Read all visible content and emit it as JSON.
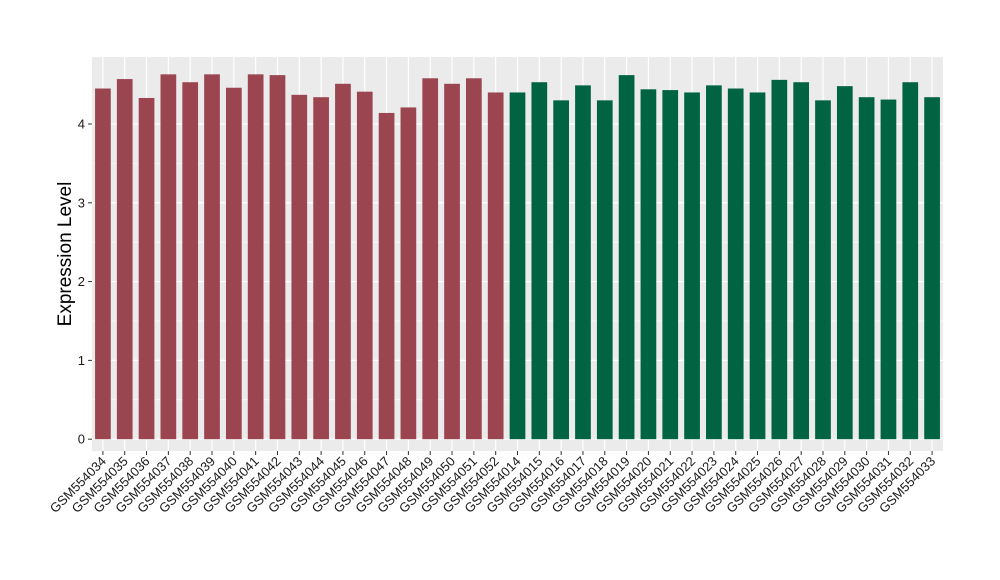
{
  "chart_data": {
    "type": "bar",
    "title": "",
    "xlabel": "",
    "ylabel": "Expression Level",
    "ylim": [
      -0.15,
      4.85
    ],
    "yticks": [
      0,
      1,
      2,
      3,
      4
    ],
    "grid": true,
    "legend": "none",
    "colors": {
      "group_a": "#9b4551",
      "group_b": "#006442",
      "panel": "#ebebeb",
      "gridline": "#ffffff"
    },
    "categories": [
      "GSM554034",
      "GSM554035",
      "GSM554036",
      "GSM554037",
      "GSM554038",
      "GSM554039",
      "GSM554040",
      "GSM554041",
      "GSM554042",
      "GSM554043",
      "GSM554044",
      "GSM554045",
      "GSM554046",
      "GSM554047",
      "GSM554048",
      "GSM554049",
      "GSM554050",
      "GSM554051",
      "GSM554052",
      "GSM554014",
      "GSM554015",
      "GSM554016",
      "GSM554017",
      "GSM554018",
      "GSM554019",
      "GSM554020",
      "GSM554021",
      "GSM554022",
      "GSM554023",
      "GSM554024",
      "GSM554025",
      "GSM554026",
      "GSM554027",
      "GSM554028",
      "GSM554029",
      "GSM554030",
      "GSM554031",
      "GSM554032",
      "GSM554033"
    ],
    "values": [
      4.45,
      4.57,
      4.33,
      4.63,
      4.53,
      4.63,
      4.46,
      4.63,
      4.62,
      4.37,
      4.34,
      4.51,
      4.41,
      4.14,
      4.21,
      4.58,
      4.51,
      4.58,
      4.4,
      4.4,
      4.53,
      4.3,
      4.49,
      4.3,
      4.62,
      4.44,
      4.43,
      4.4,
      4.49,
      4.45,
      4.4,
      4.56,
      4.53,
      4.3,
      4.48,
      4.34,
      4.31,
      4.53,
      4.34
    ],
    "group": [
      "a",
      "a",
      "a",
      "a",
      "a",
      "a",
      "a",
      "a",
      "a",
      "a",
      "a",
      "a",
      "a",
      "a",
      "a",
      "a",
      "a",
      "a",
      "a",
      "b",
      "b",
      "b",
      "b",
      "b",
      "b",
      "b",
      "b",
      "b",
      "b",
      "b",
      "b",
      "b",
      "b",
      "b",
      "b",
      "b",
      "b",
      "b",
      "b"
    ]
  }
}
